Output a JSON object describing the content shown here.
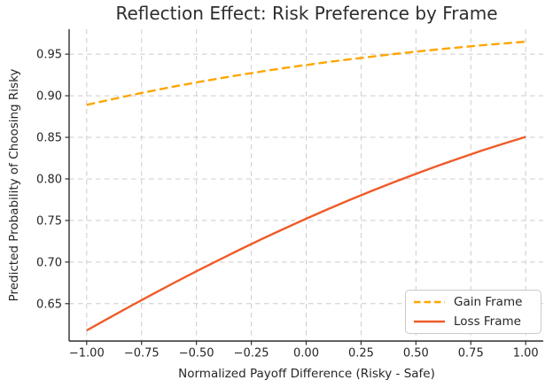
{
  "figure": {
    "background": "#ffffff"
  },
  "chart_data": {
    "type": "line",
    "title": "Reflection Effect: Risk Preference by Frame",
    "xlabel": "Normalized Payoff Difference (Risky - Safe)",
    "ylabel": "Predicted Probability of Choosing Risky",
    "xlim": [
      -1.08,
      1.08
    ],
    "ylim": [
      0.605,
      0.98
    ],
    "grid": true,
    "grid_color": "#cccccc",
    "legend_position": "lower right",
    "x_ticks": [
      -1.0,
      -0.75,
      -0.5,
      -0.25,
      0.0,
      0.25,
      0.5,
      0.75,
      1.0
    ],
    "x_tick_labels": [
      "−1.00",
      "−0.75",
      "−0.50",
      "−0.25",
      "0.00",
      "0.25",
      "0.50",
      "0.75",
      "1.00"
    ],
    "y_ticks": [
      0.65,
      0.7,
      0.75,
      0.8,
      0.85,
      0.9,
      0.95
    ],
    "y_tick_labels": [
      "0.65",
      "0.70",
      "0.75",
      "0.80",
      "0.85",
      "0.90",
      "0.95"
    ],
    "x": [
      -1.0,
      -0.9,
      -0.8,
      -0.7,
      -0.6,
      -0.5,
      -0.4,
      -0.3,
      -0.2,
      -0.1,
      0.0,
      0.1,
      0.2,
      0.3,
      0.4,
      0.5,
      0.6,
      0.7,
      0.8,
      0.9,
      1.0
    ],
    "series": [
      {
        "name": "Gain Frame",
        "color": "#FFA500",
        "style": "dashed",
        "values": [
          0.889,
          0.8949,
          0.9006,
          0.906,
          0.9112,
          0.9161,
          0.9207,
          0.9251,
          0.9293,
          0.9333,
          0.937,
          0.9406,
          0.9439,
          0.9471,
          0.9502,
          0.953,
          0.9557,
          0.9583,
          0.9607,
          0.9629,
          0.9651
        ]
      },
      {
        "name": "Loss Frame",
        "color": "#EF5B28",
        "style": "solid",
        "values": [
          0.6178,
          0.6325,
          0.6471,
          0.6613,
          0.6753,
          0.6889,
          0.7022,
          0.7153,
          0.7279,
          0.7402,
          0.7521,
          0.7637,
          0.7749,
          0.7857,
          0.7961,
          0.8061,
          0.8158,
          0.825,
          0.834,
          0.8425,
          0.8506
        ]
      }
    ]
  },
  "legend": {
    "items": [
      {
        "label": "Gain Frame"
      },
      {
        "label": "Loss Frame"
      }
    ]
  }
}
